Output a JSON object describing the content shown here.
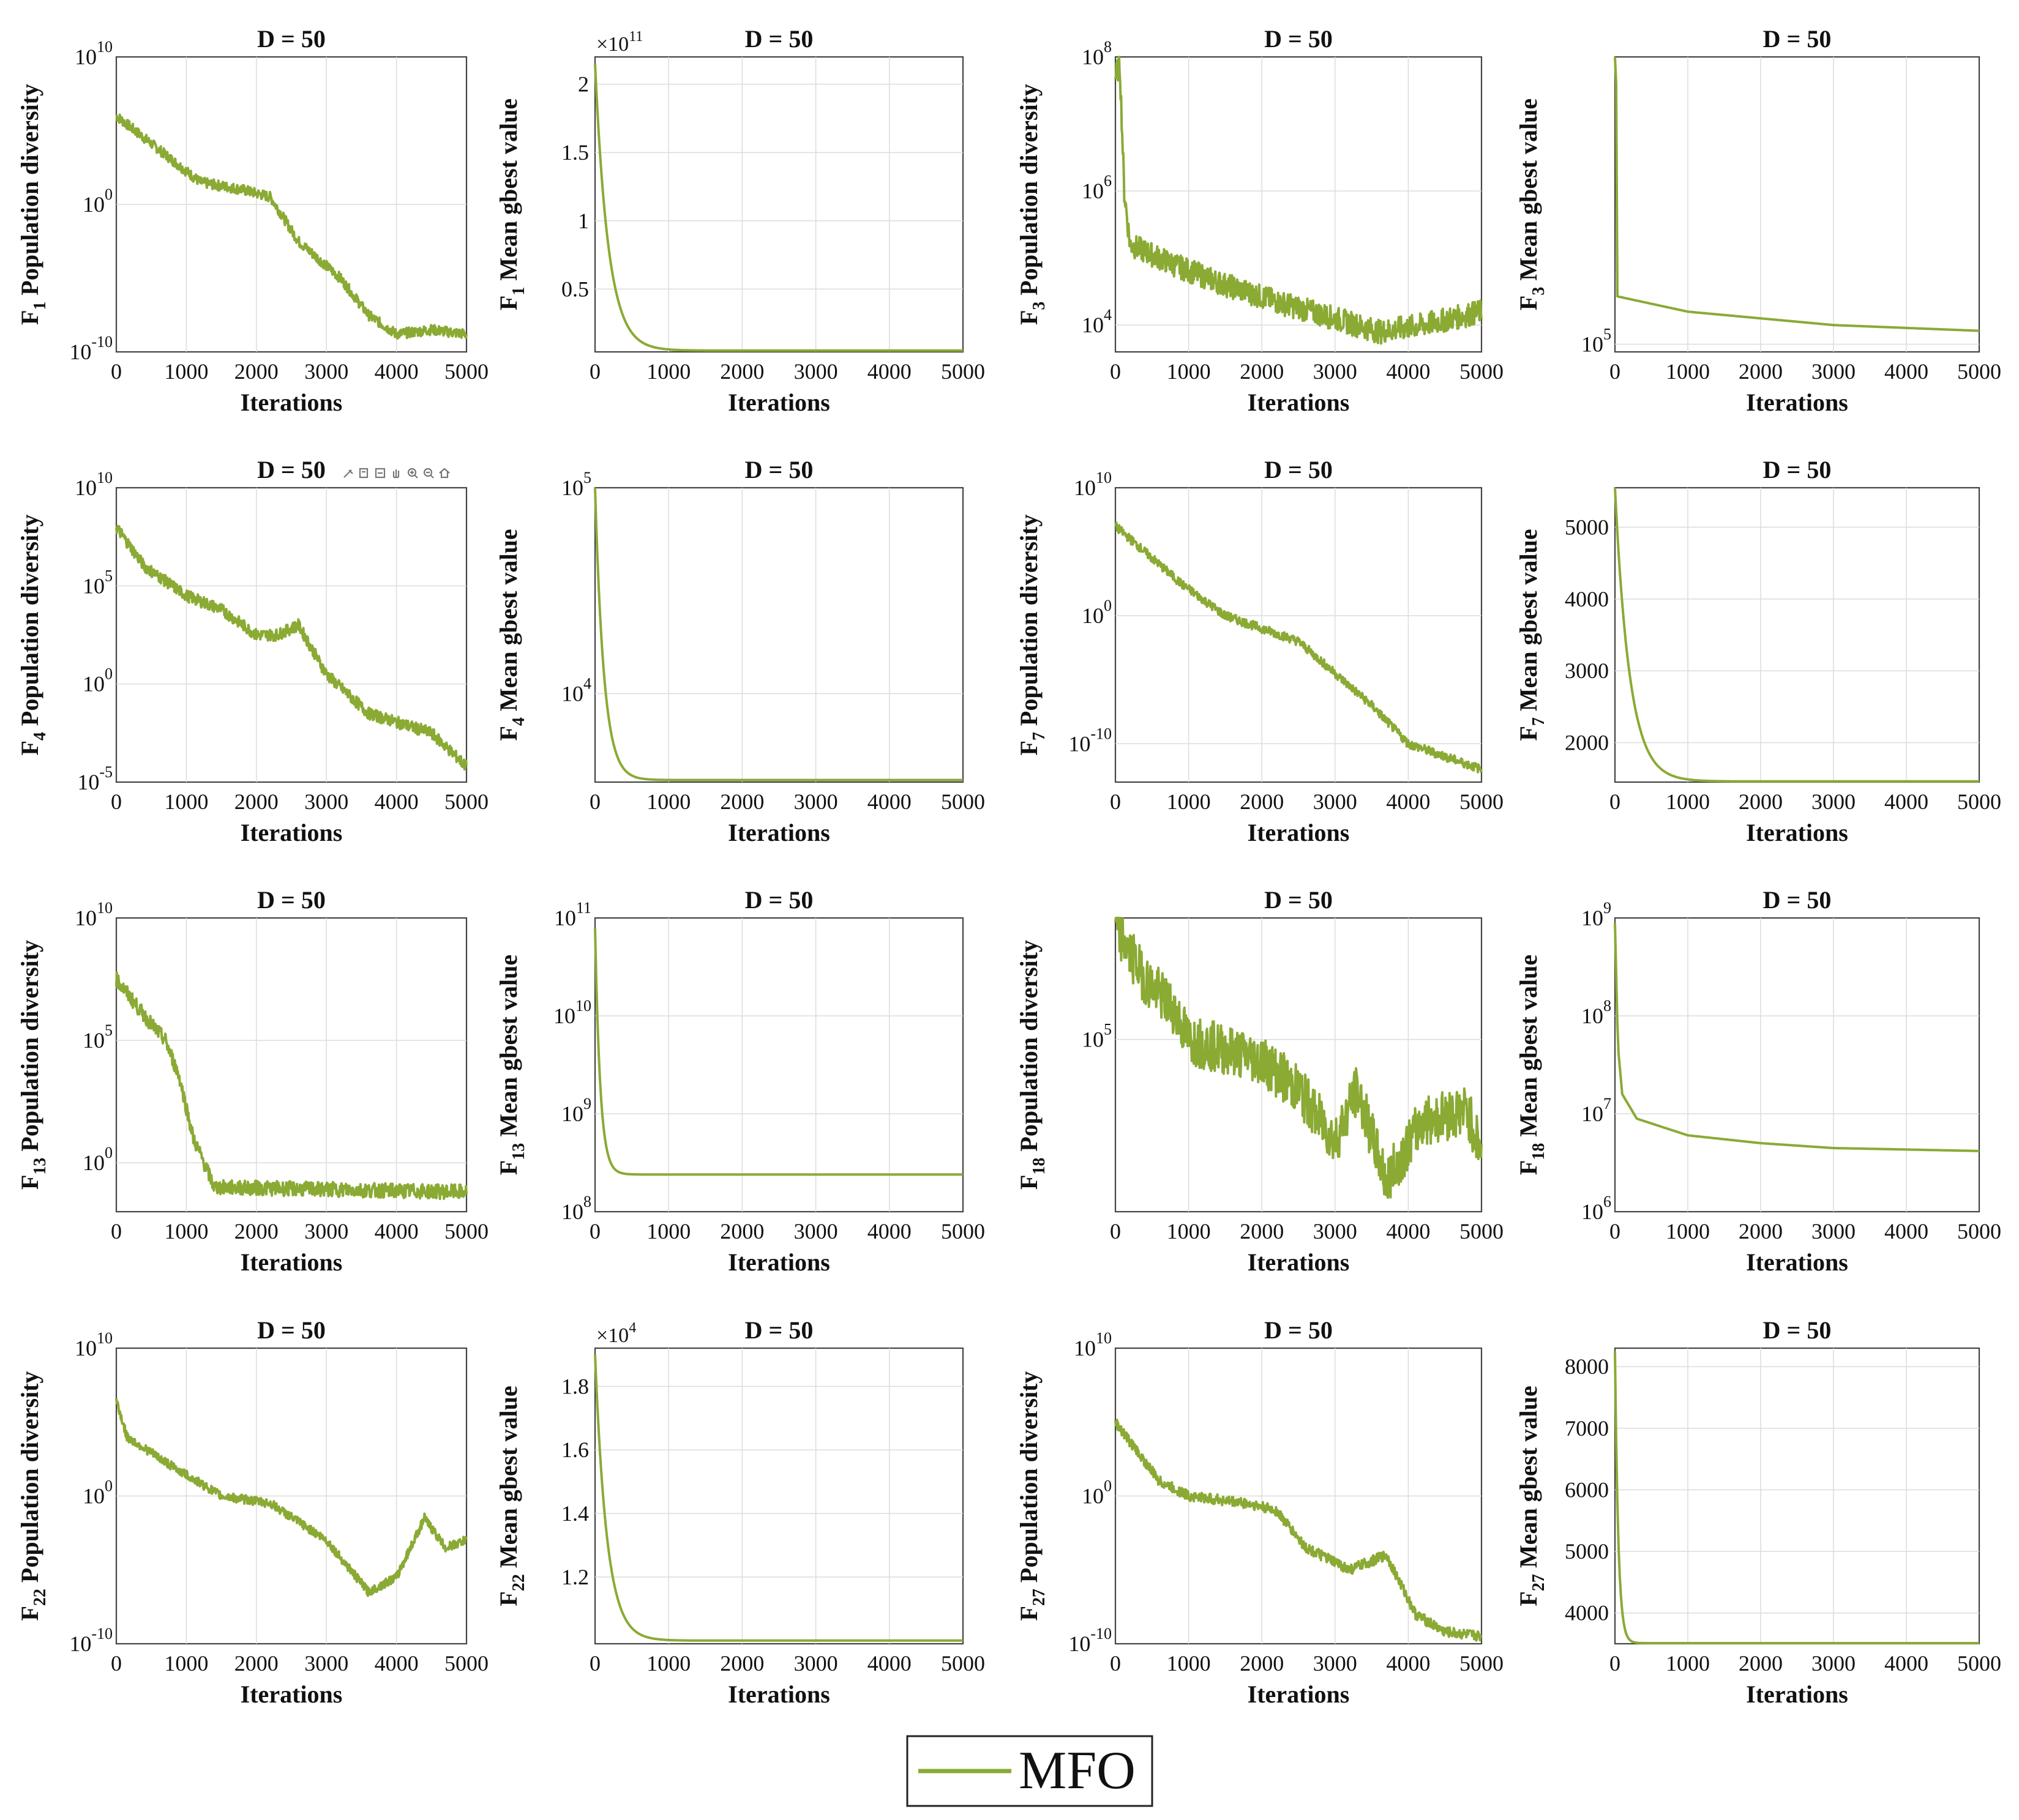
{
  "figure": {
    "legend": {
      "label": "MFO",
      "color": "#8aaa34",
      "placement": "bottom-center"
    },
    "line_color": "#8aaa34",
    "toolbar_icons": [
      "brush-icon",
      "data-tip-icon",
      "pan-icon",
      "hand-icon",
      "zoom-in-icon",
      "zoom-out-icon",
      "home-icon"
    ]
  },
  "chart_data": [
    {
      "type": "line",
      "title": "D = 50",
      "func": "1",
      "ylabel": "Population diversity",
      "xlabel": "Iterations",
      "scale": "log",
      "ylim": [
        -10,
        10
      ],
      "yticks": [
        {
          "v": 10,
          "b": "10",
          "e": "10"
        },
        {
          "v": 0,
          "b": "10",
          "e": "0"
        },
        {
          "v": -10,
          "b": "10",
          "e": "-10"
        }
      ],
      "xticks": [
        "0",
        "1000",
        "2000",
        "3000",
        "4000",
        "5000"
      ],
      "xlim": [
        0,
        5000
      ],
      "series": [
        {
          "name": "MFO",
          "shape": "diversity",
          "points": [
            [
              0,
              6
            ],
            [
              800,
              3
            ],
            [
              1200,
              1.5
            ],
            [
              1800,
              1
            ],
            [
              2200,
              0.5
            ],
            [
              2600,
              -2.5
            ],
            [
              3200,
              -5
            ],
            [
              3600,
              -7.5
            ],
            [
              4000,
              -8.8
            ],
            [
              4500,
              -8.5
            ],
            [
              5000,
              -8.8
            ]
          ],
          "noise": 0.35
        }
      ]
    },
    {
      "type": "line",
      "title": "D = 50",
      "func": "1",
      "ylabel": "Mean gbest value",
      "xlabel": "Iterations",
      "scale": "linear",
      "exponent": "11",
      "ylim": [
        0.04,
        2.2
      ],
      "yticks": [
        {
          "v": 0.5,
          "t": "0.5"
        },
        {
          "v": 1,
          "t": "1"
        },
        {
          "v": 1.5,
          "t": "1.5"
        },
        {
          "v": 2,
          "t": "2"
        }
      ],
      "xticks": [
        "0",
        "1000",
        "2000",
        "3000",
        "4000",
        "5000"
      ],
      "xlim": [
        0,
        5000
      ],
      "series": [
        {
          "name": "MFO",
          "shape": "convergence",
          "start": 2.15,
          "end": 0.05,
          "k": 180
        }
      ]
    },
    {
      "type": "line",
      "title": "D = 50",
      "func": "3",
      "ylabel": "Population diversity",
      "xlabel": "Iterations",
      "scale": "log",
      "ylim": [
        3.6,
        8
      ],
      "yticks": [
        {
          "v": 8,
          "b": "10",
          "e": "8"
        },
        {
          "v": 6,
          "b": "10",
          "e": "6"
        },
        {
          "v": 4,
          "b": "10",
          "e": "4"
        }
      ],
      "xticks": [
        "0",
        "1000",
        "2000",
        "3000",
        "4000",
        "5000"
      ],
      "xlim": [
        0,
        5000
      ],
      "series": [
        {
          "name": "MFO",
          "shape": "diversity",
          "points": [
            [
              0,
              7.7
            ],
            [
              60,
              7.9
            ],
            [
              120,
              6
            ],
            [
              200,
              5.2
            ],
            [
              800,
              4.9
            ],
            [
              1500,
              4.6
            ],
            [
              2200,
              4.35
            ],
            [
              3000,
              4.1
            ],
            [
              3600,
              3.9
            ],
            [
              4200,
              4.0
            ],
            [
              5000,
              4.2
            ]
          ],
          "noise": 0.18
        }
      ]
    },
    {
      "type": "line",
      "title": "D = 50",
      "func": "3",
      "ylabel": "Mean gbest value",
      "xlabel": "Iterations",
      "scale": "log",
      "ylim": [
        4.96,
        6.5
      ],
      "yticks": [
        {
          "v": 5,
          "b": "10",
          "e": "5"
        }
      ],
      "xticks": [
        "0",
        "1000",
        "2000",
        "3000",
        "4000",
        "5000"
      ],
      "xlim": [
        0,
        5000
      ],
      "series": [
        {
          "name": "MFO",
          "shape": "decay",
          "points": [
            [
              0,
              6.5
            ],
            [
              15,
              6.5
            ],
            [
              30,
              5.25
            ],
            [
              1000,
              5.17
            ],
            [
              3000,
              5.1
            ],
            [
              5000,
              5.07
            ]
          ]
        }
      ]
    },
    {
      "type": "line",
      "title": "D = 50",
      "func": "4",
      "ylabel": "Population diversity",
      "xlabel": "Iterations",
      "scale": "log",
      "ylim": [
        -5,
        10
      ],
      "yticks": [
        {
          "v": 10,
          "b": "10",
          "e": "10"
        },
        {
          "v": 5,
          "b": "10",
          "e": "5"
        },
        {
          "v": 0,
          "b": "10",
          "e": "0"
        },
        {
          "v": -5,
          "b": "10",
          "e": "-5"
        }
      ],
      "xticks": [
        "0",
        "1000",
        "2000",
        "3000",
        "4000",
        "5000"
      ],
      "xlim": [
        0,
        5000
      ],
      "series": [
        {
          "name": "MFO",
          "shape": "diversity",
          "points": [
            [
              0,
              8
            ],
            [
              400,
              6
            ],
            [
              1000,
              4.5
            ],
            [
              1500,
              3.8
            ],
            [
              2000,
              2.5
            ],
            [
              2300,
              2.5
            ],
            [
              2600,
              3
            ],
            [
              3000,
              0.5
            ],
            [
              3600,
              -1.5
            ],
            [
              4500,
              -2.5
            ],
            [
              5000,
              -4.2
            ]
          ],
          "noise": 0.3
        }
      ]
    },
    {
      "type": "line",
      "title": "D = 50",
      "func": "4",
      "ylabel": "Mean gbest value",
      "xlabel": "Iterations",
      "scale": "log",
      "ylim": [
        3.57,
        5
      ],
      "yticks": [
        {
          "v": 5,
          "b": "10",
          "e": "5"
        },
        {
          "v": 4,
          "b": "10",
          "e": "4"
        }
      ],
      "xticks": [
        "0",
        "1000",
        "2000",
        "3000",
        "4000",
        "5000"
      ],
      "xlim": [
        0,
        5000
      ],
      "series": [
        {
          "name": "MFO",
          "shape": "convergence",
          "start": 5,
          "end": 3.58,
          "k": 120
        }
      ]
    },
    {
      "type": "line",
      "title": "D = 50",
      "func": "7",
      "ylabel": "Population diversity",
      "xlabel": "Iterations",
      "scale": "log",
      "ylim": [
        -13,
        10
      ],
      "yticks": [
        {
          "v": 10,
          "b": "10",
          "e": "10"
        },
        {
          "v": 0,
          "b": "10",
          "e": "0"
        },
        {
          "v": -10,
          "b": "10",
          "e": "-10"
        }
      ],
      "xticks": [
        "0",
        "1000",
        "2000",
        "3000",
        "4000",
        "5000"
      ],
      "xlim": [
        0,
        5000
      ],
      "series": [
        {
          "name": "MFO",
          "shape": "diversity",
          "points": [
            [
              0,
              7
            ],
            [
              600,
              4
            ],
            [
              900,
              2.5
            ],
            [
              1500,
              0
            ],
            [
              2500,
              -2
            ],
            [
              3500,
              -7
            ],
            [
              4000,
              -10
            ],
            [
              4500,
              -11
            ],
            [
              5000,
              -12
            ]
          ],
          "noise": 0.35
        }
      ]
    },
    {
      "type": "line",
      "title": "D = 50",
      "func": "7",
      "ylabel": "Mean gbest value",
      "xlabel": "Iterations",
      "scale": "linear",
      "ylim": [
        1450,
        5550
      ],
      "yticks": [
        {
          "v": 2000,
          "t": "2000"
        },
        {
          "v": 3000,
          "t": "3000"
        },
        {
          "v": 4000,
          "t": "4000"
        },
        {
          "v": 5000,
          "t": "5000"
        }
      ],
      "xticks": [
        "0",
        "1000",
        "2000",
        "3000",
        "4000",
        "5000"
      ],
      "xlim": [
        0,
        5000
      ],
      "series": [
        {
          "name": "MFO",
          "shape": "convergence",
          "start": 5550,
          "end": 1460,
          "k": 200
        }
      ]
    },
    {
      "type": "line",
      "title": "D = 50",
      "func": "13",
      "ylabel": "Population diversity",
      "xlabel": "Iterations",
      "scale": "log",
      "ylim": [
        -2,
        10
      ],
      "yticks": [
        {
          "v": 10,
          "b": "10",
          "e": "10"
        },
        {
          "v": 5,
          "b": "10",
          "e": "5"
        },
        {
          "v": 0,
          "b": "10",
          "e": "0"
        }
      ],
      "xticks": [
        "0",
        "1000",
        "2000",
        "3000",
        "4000",
        "5000"
      ],
      "xlim": [
        0,
        5000
      ],
      "series": [
        {
          "name": "MFO",
          "shape": "diversity",
          "points": [
            [
              0,
              7.5
            ],
            [
              400,
              6
            ],
            [
              700,
              5
            ],
            [
              900,
              3.5
            ],
            [
              1100,
              1
            ],
            [
              1400,
              -1
            ],
            [
              5000,
              -1.2
            ]
          ],
          "noise": 0.3
        }
      ]
    },
    {
      "type": "line",
      "title": "D = 50",
      "func": "13",
      "ylabel": "Mean gbest value",
      "xlabel": "Iterations",
      "scale": "log",
      "ylim": [
        8,
        11
      ],
      "yticks": [
        {
          "v": 11,
          "b": "10",
          "e": "11"
        },
        {
          "v": 10,
          "b": "10",
          "e": "10"
        },
        {
          "v": 9,
          "b": "10",
          "e": "9"
        },
        {
          "v": 8,
          "b": "10",
          "e": "8"
        }
      ],
      "xticks": [
        "0",
        "1000",
        "2000",
        "3000",
        "4000",
        "5000"
      ],
      "xlim": [
        0,
        5000
      ],
      "series": [
        {
          "name": "MFO",
          "shape": "convergence",
          "start": 10.9,
          "end": 8.38,
          "k": 70
        }
      ]
    },
    {
      "type": "line",
      "title": "D = 50",
      "func": "18",
      "ylabel": "Population diversity",
      "xlabel": "Iterations",
      "scale": "log",
      "ylim": [
        3.3,
        6.2
      ],
      "yticks": [
        {
          "v": 5,
          "b": "10",
          "e": "5"
        }
      ],
      "xticks": [
        "0",
        "1000",
        "2000",
        "3000",
        "4000",
        "5000"
      ],
      "xlim": [
        0,
        5000
      ],
      "series": [
        {
          "name": "MFO",
          "shape": "diversity",
          "points": [
            [
              0,
              6.1
            ],
            [
              400,
              5.6
            ],
            [
              800,
              5.3
            ],
            [
              1000,
              5.0
            ],
            [
              2000,
              4.8
            ],
            [
              2500,
              4.5
            ],
            [
              3000,
              4.0
            ],
            [
              3300,
              4.5
            ],
            [
              3700,
              3.6
            ],
            [
              4200,
              4.2
            ],
            [
              4800,
              4.3
            ],
            [
              5000,
              3.9
            ]
          ],
          "noise": 0.25
        }
      ]
    },
    {
      "type": "line",
      "title": "D = 50",
      "func": "18",
      "ylabel": "Mean gbest value",
      "xlabel": "Iterations",
      "scale": "log",
      "ylim": [
        6,
        9
      ],
      "yticks": [
        {
          "v": 9,
          "b": "10",
          "e": "9"
        },
        {
          "v": 8,
          "b": "10",
          "e": "8"
        },
        {
          "v": 7,
          "b": "10",
          "e": "7"
        },
        {
          "v": 6,
          "b": "10",
          "e": "6"
        }
      ],
      "xticks": [
        "0",
        "1000",
        "2000",
        "3000",
        "4000",
        "5000"
      ],
      "xlim": [
        0,
        5000
      ],
      "series": [
        {
          "name": "MFO",
          "shape": "decay",
          "points": [
            [
              0,
              8.95
            ],
            [
              40,
              7.7
            ],
            [
              100,
              7.2
            ],
            [
              300,
              6.95
            ],
            [
              1000,
              6.78
            ],
            [
              2000,
              6.7
            ],
            [
              3000,
              6.65
            ],
            [
              5000,
              6.62
            ]
          ]
        }
      ]
    },
    {
      "type": "line",
      "title": "D = 50",
      "func": "22",
      "ylabel": "Population diversity",
      "xlabel": "Iterations",
      "scale": "log",
      "ylim": [
        -10,
        10
      ],
      "yticks": [
        {
          "v": 10,
          "b": "10",
          "e": "10"
        },
        {
          "v": 0,
          "b": "10",
          "e": "0"
        },
        {
          "v": -10,
          "b": "10",
          "e": "-10"
        }
      ],
      "xticks": [
        "0",
        "1000",
        "2000",
        "3000",
        "4000",
        "5000"
      ],
      "xlim": [
        0,
        5000
      ],
      "series": [
        {
          "name": "MFO",
          "shape": "diversity",
          "points": [
            [
              0,
              6.5
            ],
            [
              150,
              4
            ],
            [
              800,
              2
            ],
            [
              1500,
              0
            ],
            [
              2200,
              -0.5
            ],
            [
              3000,
              -3
            ],
            [
              3600,
              -6.5
            ],
            [
              4000,
              -5.5
            ],
            [
              4400,
              -1.5
            ],
            [
              4700,
              -3.5
            ],
            [
              5000,
              -3
            ]
          ],
          "noise": 0.3
        }
      ]
    },
    {
      "type": "line",
      "title": "D = 50",
      "func": "22",
      "ylabel": "Mean gbest value",
      "xlabel": "Iterations",
      "scale": "linear",
      "exponent": "4",
      "ylim": [
        0.99,
        1.92
      ],
      "yticks": [
        {
          "v": 1.2,
          "t": "1.2"
        },
        {
          "v": 1.4,
          "t": "1.4"
        },
        {
          "v": 1.6,
          "t": "1.6"
        },
        {
          "v": 1.8,
          "t": "1.8"
        }
      ],
      "xticks": [
        "0",
        "1000",
        "2000",
        "3000",
        "4000",
        "5000"
      ],
      "xlim": [
        0,
        5000
      ],
      "series": [
        {
          "name": "MFO",
          "shape": "convergence",
          "start": 1.9,
          "end": 1.0,
          "k": 160
        }
      ]
    },
    {
      "type": "line",
      "title": "D = 50",
      "func": "27",
      "ylabel": "Population diversity",
      "xlabel": "Iterations",
      "scale": "log",
      "ylim": [
        -10,
        10
      ],
      "yticks": [
        {
          "v": 10,
          "b": "10",
          "e": "10"
        },
        {
          "v": 0,
          "b": "10",
          "e": "0"
        },
        {
          "v": -10,
          "b": "10",
          "e": "-10"
        }
      ],
      "xticks": [
        "0",
        "1000",
        "2000",
        "3000",
        "4000",
        "5000"
      ],
      "xlim": [
        0,
        5000
      ],
      "series": [
        {
          "name": "MFO",
          "shape": "diversity",
          "points": [
            [
              0,
              5
            ],
            [
              600,
              1
            ],
            [
              1000,
              0
            ],
            [
              1800,
              -0.5
            ],
            [
              2200,
              -1
            ],
            [
              2600,
              -3.5
            ],
            [
              3200,
              -5
            ],
            [
              3700,
              -4
            ],
            [
              4100,
              -8
            ],
            [
              4500,
              -9.2
            ],
            [
              5000,
              -9.5
            ]
          ],
          "noise": 0.35
        }
      ]
    },
    {
      "type": "line",
      "title": "D = 50",
      "func": "27",
      "ylabel": "Mean gbest value",
      "xlabel": "Iterations",
      "scale": "linear",
      "ylim": [
        3500,
        8300
      ],
      "yticks": [
        {
          "v": 4000,
          "t": "4000"
        },
        {
          "v": 5000,
          "t": "5000"
        },
        {
          "v": 6000,
          "t": "6000"
        },
        {
          "v": 7000,
          "t": "7000"
        },
        {
          "v": 8000,
          "t": "8000"
        }
      ],
      "xticks": [
        "0",
        "1000",
        "2000",
        "3000",
        "4000",
        "5000"
      ],
      "xlim": [
        0,
        5000
      ],
      "series": [
        {
          "name": "MFO",
          "shape": "convergence",
          "start": 8250,
          "end": 3510,
          "k": 45
        }
      ]
    }
  ]
}
